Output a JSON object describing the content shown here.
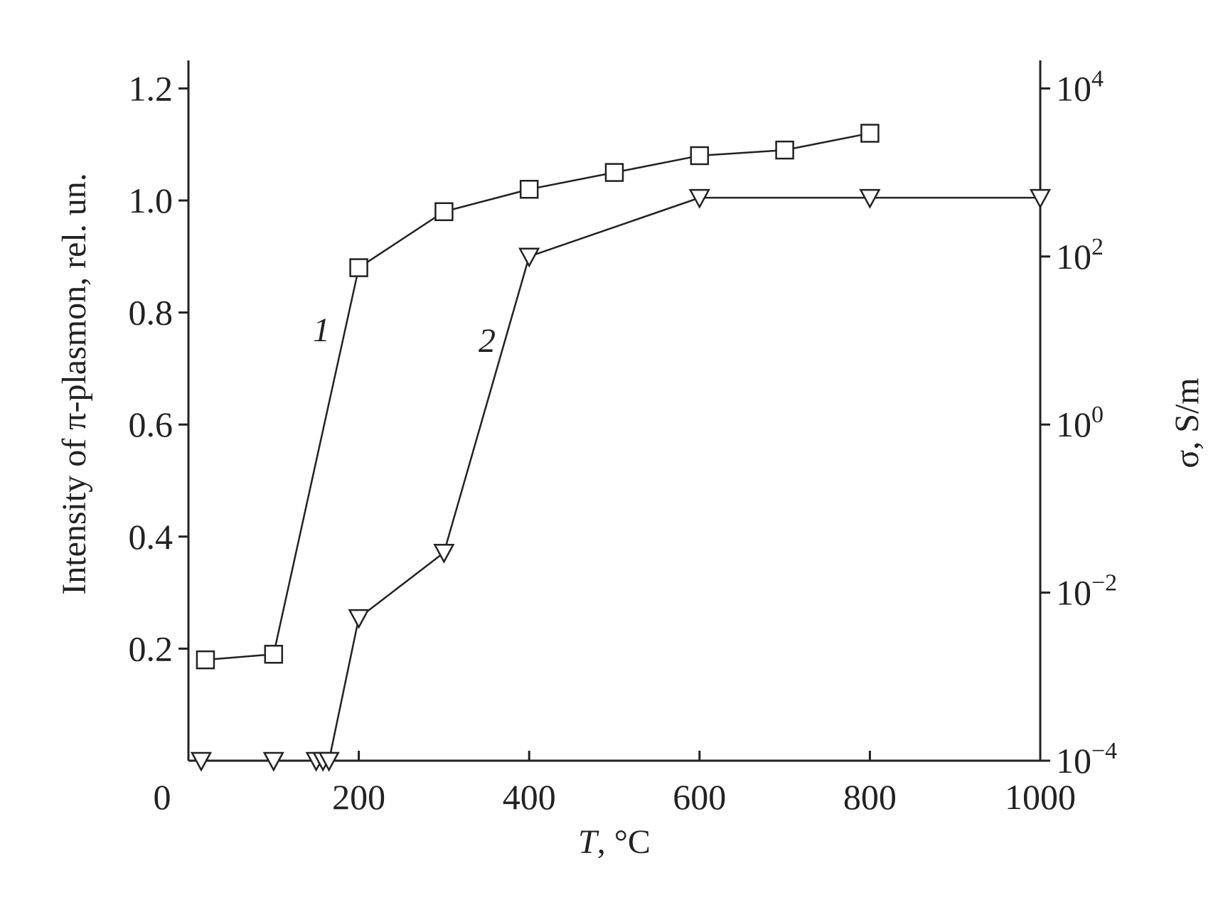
{
  "chart_data": {
    "type": "line",
    "x": {
      "label_italic": "T",
      "label_rest": ", °C",
      "range": [
        0,
        1000
      ],
      "ticks": [
        0,
        200,
        400,
        600,
        800,
        1000
      ]
    },
    "y_left": {
      "label": "Intensity of π-plasmon, rel. un.",
      "range": [
        0,
        1.25
      ],
      "ticks": [
        0.2,
        0.4,
        0.6,
        0.8,
        1.0,
        1.2
      ],
      "tick_labels": [
        "0.2",
        "0.4",
        "0.6",
        "0.8",
        "1.0",
        "1.2"
      ]
    },
    "y_right": {
      "label": "σ, S/m",
      "scale": "log",
      "range": [
        0.0001,
        10000
      ],
      "ticks": [
        {
          "value": 0.0001,
          "base": "10",
          "exp": "−4"
        },
        {
          "value": 0.01,
          "base": "10",
          "exp": "−2"
        },
        {
          "value": 1,
          "base": "10",
          "exp": "0"
        },
        {
          "value": 100,
          "base": "10",
          "exp": "2"
        },
        {
          "value": 10000,
          "base": "10",
          "exp": "4"
        }
      ]
    },
    "series": [
      {
        "label": "1",
        "axis": "left",
        "marker": "square",
        "points": [
          [
            20,
            0.18
          ],
          [
            100,
            0.19
          ],
          [
            200,
            0.88
          ],
          [
            300,
            0.98
          ],
          [
            400,
            1.02
          ],
          [
            500,
            1.05
          ],
          [
            600,
            1.08
          ],
          [
            700,
            1.09
          ],
          [
            800,
            1.12
          ]
        ]
      },
      {
        "label": "2",
        "axis": "right",
        "marker": "triangle-down",
        "points": [
          [
            15,
            0.0001
          ],
          [
            100,
            0.0001
          ],
          [
            150,
            0.0001
          ],
          [
            158,
            0.0001
          ],
          [
            165,
            0.0001
          ],
          [
            200,
            0.005
          ],
          [
            300,
            0.03
          ],
          [
            400,
            100
          ],
          [
            600,
            500
          ],
          [
            800,
            500
          ],
          [
            1000,
            500
          ]
        ]
      }
    ],
    "grid": false,
    "legend": "none"
  }
}
